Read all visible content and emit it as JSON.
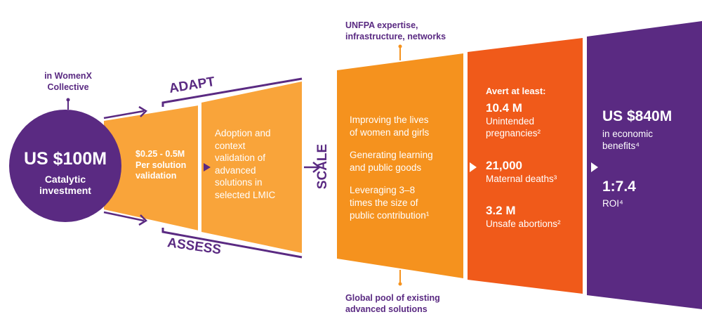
{
  "colors": {
    "purple": "#5a2a82",
    "orange_light": "#f9a43a",
    "orange": "#f5921e",
    "orange_red": "#f05a1a",
    "white": "#ffffff"
  },
  "circle": {
    "top_note": "in WomenX\nCollective",
    "amount": "US $100M",
    "caption": "Catalytic\ninvestment"
  },
  "adapt_assess": {
    "adapt_label": "ADAPT",
    "assess_label": "ASSESS",
    "cost": "$0.25 - 0.5M",
    "cost_caption": "Per solution\nvalidation",
    "description": "Adoption and\ncontext\nvalidation of\nadvanced\nsolutions in\nselected LMIC"
  },
  "scale": {
    "label": "SCALE",
    "top_note": "UNFPA expertise,\ninfrastructure, networks",
    "bottom_note": "Global pool of existing\nadvanced solutions",
    "points": [
      "Improving the lives\nof women and girls",
      "Generating learning\nand public goods",
      "Leveraging 3–8\ntimes the size of\npublic contribution¹"
    ]
  },
  "avert": {
    "heading": "Avert at least:",
    "items": [
      {
        "value": "10.4 M",
        "label": "Unintended\npregnancies²"
      },
      {
        "value": "21,000",
        "label": "Maternal deaths³"
      },
      {
        "value": "3.2 M",
        "label": "Unsafe abortions²"
      }
    ]
  },
  "benefits": {
    "amount": "US $840M",
    "amount_caption": "in economic\nbenefits⁴",
    "roi": "1:7.4",
    "roi_caption": "ROI⁴"
  }
}
